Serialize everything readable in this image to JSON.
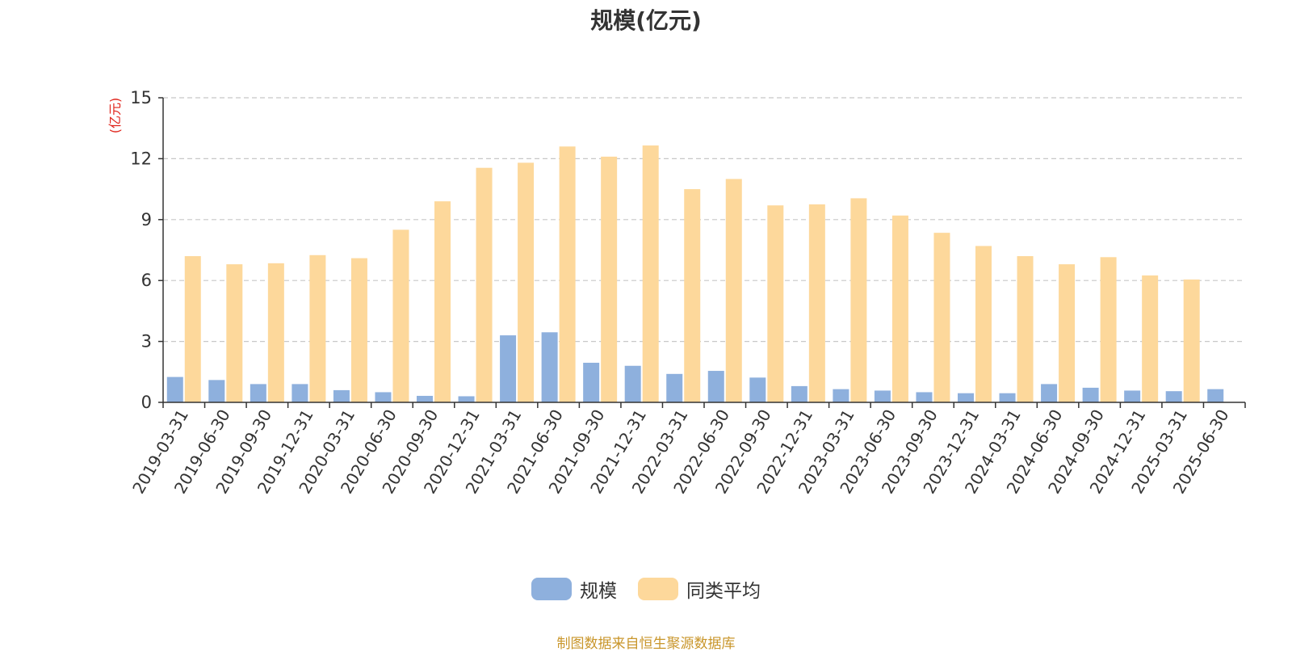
{
  "chart_data": {
    "type": "bar",
    "title": "规模(亿元)",
    "y_unit": "(亿元)",
    "ylim": [
      0,
      15
    ],
    "yticks": [
      "0",
      "3",
      "6",
      "9",
      "12",
      "15"
    ],
    "grid": "horizontal dashed",
    "legend_position": "bottom-center",
    "categories": [
      "2019-03-31",
      "2019-06-30",
      "2019-09-30",
      "2019-12-31",
      "2020-03-31",
      "2020-06-30",
      "2020-09-30",
      "2020-12-31",
      "2021-03-31",
      "2021-06-30",
      "2021-09-30",
      "2021-12-31",
      "2022-03-31",
      "2022-06-30",
      "2022-09-30",
      "2022-12-31",
      "2023-03-31",
      "2023-06-30",
      "2023-09-30",
      "2023-12-31",
      "2024-03-31",
      "2024-06-30",
      "2024-09-30",
      "2024-12-31",
      "2025-03-31",
      "2025-06-30"
    ],
    "series": [
      {
        "name": "规模",
        "color": "#8eb0dd",
        "values": [
          1.25,
          1.1,
          0.9,
          0.9,
          0.6,
          0.5,
          0.32,
          0.3,
          3.3,
          3.45,
          1.95,
          1.8,
          1.4,
          1.55,
          1.22,
          0.8,
          0.65,
          0.58,
          0.5,
          0.45,
          0.45,
          0.9,
          0.72,
          0.58,
          0.55,
          0.65
        ]
      },
      {
        "name": "同类平均",
        "color": "#fdd89b",
        "values": [
          7.2,
          6.8,
          6.85,
          7.25,
          7.1,
          8.5,
          9.9,
          11.55,
          11.8,
          12.6,
          12.1,
          12.65,
          10.5,
          11.0,
          9.7,
          9.75,
          10.05,
          9.2,
          8.35,
          7.7,
          7.2,
          6.8,
          7.15,
          6.25,
          6.05,
          null
        ]
      }
    ]
  },
  "source_note": "制图数据来自恒生聚源数据库"
}
